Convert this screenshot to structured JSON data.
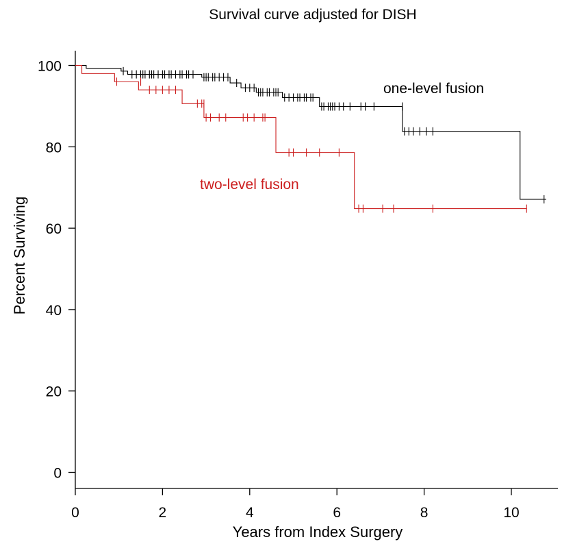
{
  "chart_data": {
    "type": "line",
    "subtype": "kaplan-meier-step",
    "title": "Survival curve adjusted for DISH",
    "xlabel": "Years from Index Surgery",
    "ylabel": "Percent Surviving",
    "xlim": [
      0,
      11
    ],
    "ylim": [
      -4,
      104
    ],
    "xticks": [
      0,
      2,
      4,
      6,
      8,
      10
    ],
    "yticks": [
      0,
      20,
      40,
      60,
      80,
      100
    ],
    "grid": false,
    "legend": "inline labels",
    "series": [
      {
        "name": "one-level fusion",
        "color": "#000000",
        "steps": [
          [
            0,
            100
          ],
          [
            0.25,
            99.3
          ],
          [
            1.05,
            98.6
          ],
          [
            1.2,
            97.8
          ],
          [
            2.9,
            97.1
          ],
          [
            3.55,
            95.7
          ],
          [
            3.8,
            94.5
          ],
          [
            4.15,
            93.4
          ],
          [
            4.75,
            92.1
          ],
          [
            5.6,
            89.9
          ],
          [
            7.5,
            83.8
          ],
          [
            10.2,
            67.1
          ],
          [
            10.8,
            67.1
          ]
        ],
        "censored": [
          [
            1.1,
            98.6
          ],
          [
            1.3,
            97.8
          ],
          [
            1.4,
            97.8
          ],
          [
            1.5,
            97.8
          ],
          [
            1.55,
            97.8
          ],
          [
            1.6,
            97.8
          ],
          [
            1.7,
            97.8
          ],
          [
            1.75,
            97.8
          ],
          [
            1.8,
            97.8
          ],
          [
            1.9,
            97.8
          ],
          [
            2.0,
            97.8
          ],
          [
            2.05,
            97.8
          ],
          [
            2.15,
            97.8
          ],
          [
            2.2,
            97.8
          ],
          [
            2.3,
            97.8
          ],
          [
            2.4,
            97.8
          ],
          [
            2.45,
            97.8
          ],
          [
            2.55,
            97.8
          ],
          [
            2.6,
            97.8
          ],
          [
            2.7,
            97.8
          ],
          [
            2.95,
            97.1
          ],
          [
            3.0,
            97.1
          ],
          [
            3.05,
            97.1
          ],
          [
            3.15,
            97.1
          ],
          [
            3.2,
            97.1
          ],
          [
            3.3,
            97.1
          ],
          [
            3.4,
            97.1
          ],
          [
            3.5,
            97.1
          ],
          [
            3.7,
            95.7
          ],
          [
            3.9,
            94.5
          ],
          [
            4.0,
            94.5
          ],
          [
            4.1,
            94.5
          ],
          [
            4.2,
            93.4
          ],
          [
            4.25,
            93.4
          ],
          [
            4.3,
            93.4
          ],
          [
            4.4,
            93.4
          ],
          [
            4.45,
            93.4
          ],
          [
            4.55,
            93.4
          ],
          [
            4.6,
            93.4
          ],
          [
            4.65,
            93.4
          ],
          [
            4.8,
            92.1
          ],
          [
            4.9,
            92.1
          ],
          [
            5.0,
            92.1
          ],
          [
            5.1,
            92.1
          ],
          [
            5.15,
            92.1
          ],
          [
            5.25,
            92.1
          ],
          [
            5.3,
            92.1
          ],
          [
            5.4,
            92.1
          ],
          [
            5.45,
            92.1
          ],
          [
            5.65,
            89.9
          ],
          [
            5.7,
            89.9
          ],
          [
            5.8,
            89.9
          ],
          [
            5.85,
            89.9
          ],
          [
            5.9,
            89.9
          ],
          [
            5.95,
            89.9
          ],
          [
            6.05,
            89.9
          ],
          [
            6.15,
            89.9
          ],
          [
            6.3,
            89.9
          ],
          [
            6.55,
            89.9
          ],
          [
            6.65,
            89.9
          ],
          [
            6.85,
            89.9
          ],
          [
            7.5,
            89.9
          ],
          [
            7.55,
            83.8
          ],
          [
            7.65,
            83.8
          ],
          [
            7.75,
            83.8
          ],
          [
            7.9,
            83.8
          ],
          [
            8.05,
            83.8
          ],
          [
            8.2,
            83.8
          ],
          [
            10.75,
            67.1
          ]
        ],
        "label_position": "upper right"
      },
      {
        "name": "two-level fusion",
        "color": "#cc2020",
        "steps": [
          [
            0,
            100
          ],
          [
            0.15,
            98.0
          ],
          [
            0.9,
            96.0
          ],
          [
            1.45,
            94.0
          ],
          [
            2.45,
            90.6
          ],
          [
            2.95,
            87.2
          ],
          [
            4.6,
            78.6
          ],
          [
            6.4,
            64.8
          ],
          [
            10.35,
            64.8
          ]
        ],
        "censored": [
          [
            0.95,
            96.0
          ],
          [
            1.5,
            96.0
          ],
          [
            1.7,
            94.0
          ],
          [
            1.85,
            94.0
          ],
          [
            2.0,
            94.0
          ],
          [
            2.15,
            94.0
          ],
          [
            2.3,
            94.0
          ],
          [
            2.8,
            90.6
          ],
          [
            2.9,
            90.6
          ],
          [
            2.95,
            90.6
          ],
          [
            3.0,
            87.2
          ],
          [
            3.1,
            87.2
          ],
          [
            3.3,
            87.2
          ],
          [
            3.45,
            87.2
          ],
          [
            3.85,
            87.2
          ],
          [
            3.95,
            87.2
          ],
          [
            4.1,
            87.2
          ],
          [
            4.3,
            87.2
          ],
          [
            4.35,
            87.2
          ],
          [
            4.9,
            78.6
          ],
          [
            5.0,
            78.6
          ],
          [
            5.3,
            78.6
          ],
          [
            5.6,
            78.6
          ],
          [
            6.05,
            78.6
          ],
          [
            6.5,
            64.8
          ],
          [
            6.6,
            64.8
          ],
          [
            7.05,
            64.8
          ],
          [
            7.3,
            64.8
          ],
          [
            8.2,
            64.8
          ],
          [
            10.35,
            64.8
          ]
        ],
        "label_position": "middle left"
      }
    ]
  }
}
